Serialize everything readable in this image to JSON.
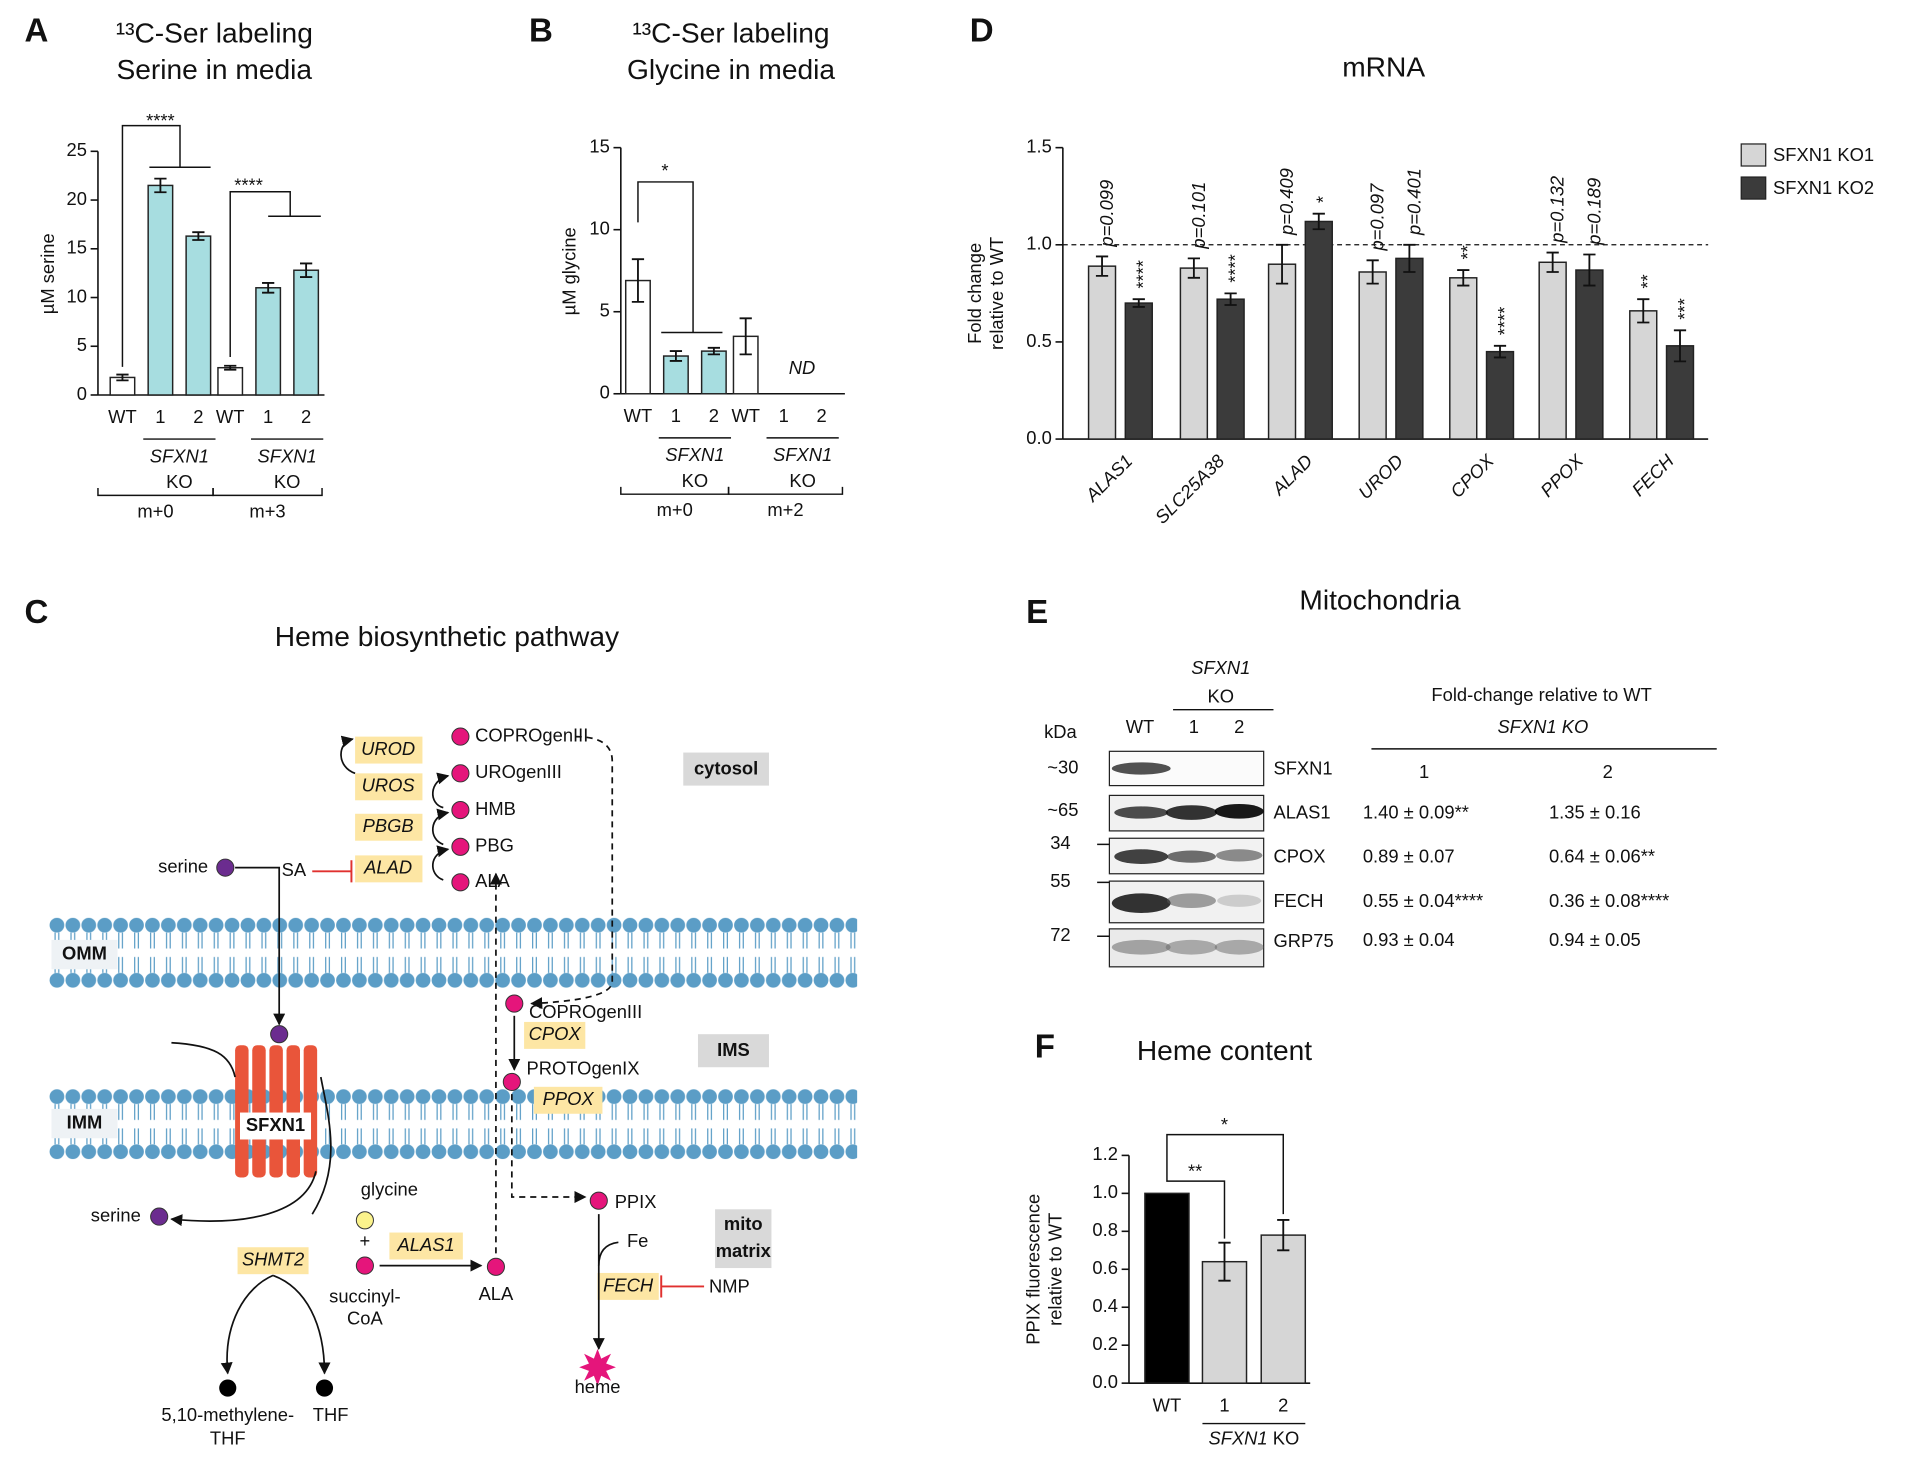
{
  "chart_data": [
    {
      "type": "bar",
      "panel": "A",
      "title": "¹³C-Ser labeling",
      "subtitle": "Serine in media",
      "y_label": "µM serine",
      "categories": [
        "WT",
        "1",
        "2",
        "WT",
        "1",
        "2"
      ],
      "values": [
        1.8,
        21.5,
        16.3,
        2.8,
        11.0,
        12.8
      ],
      "errors": [
        0.3,
        0.7,
        0.4,
        0.2,
        0.5,
        0.7
      ],
      "colors": [
        "#ffffff",
        "#a7dde0",
        "#a7dde0",
        "#ffffff",
        "#a7dde0",
        "#a7dde0"
      ],
      "ylim": [
        0,
        25
      ],
      "yticks": [
        0,
        5,
        10,
        15,
        20,
        25
      ],
      "group_label": [
        "SFXN1",
        "KO"
      ],
      "conditions": [
        "m+0",
        "m+3"
      ],
      "significance": [
        "****",
        "****"
      ]
    },
    {
      "type": "bar",
      "panel": "B",
      "title": "¹³C-Ser labeling",
      "subtitle": "Glycine in media",
      "y_label": "µM glycine",
      "categories": [
        "WT",
        "1",
        "2",
        "WT",
        "1",
        "2"
      ],
      "values": [
        6.9,
        2.3,
        2.6,
        3.5,
        null,
        null
      ],
      "errors": [
        1.3,
        0.3,
        0.2,
        1.1,
        null,
        null
      ],
      "colors": [
        "#ffffff",
        "#a7dde0",
        "#a7dde0",
        "#ffffff",
        "#a7dde0",
        "#a7dde0"
      ],
      "ylim": [
        0,
        15
      ],
      "yticks": [
        0,
        5,
        10,
        15
      ],
      "annotation": "ND",
      "group_label": [
        "SFXN1",
        "KO"
      ],
      "conditions": [
        "m+0",
        "m+2"
      ],
      "significance": [
        "*"
      ]
    },
    {
      "type": "bar",
      "panel": "D",
      "title": "mRNA",
      "y_label": [
        "Fold change",
        "relative to WT"
      ],
      "categories": [
        "ALAS1",
        "SLC25A38",
        "ALAD",
        "UROD",
        "CPOX",
        "PPOX",
        "FECH"
      ],
      "series": [
        {
          "name": "SFXN1 KO1",
          "color": "#d6d6d6",
          "values": [
            0.89,
            0.88,
            0.9,
            0.86,
            0.83,
            0.91,
            0.66
          ],
          "errors": [
            0.05,
            0.05,
            0.1,
            0.06,
            0.04,
            0.05,
            0.06
          ],
          "annotations": [
            "p=0.099",
            "p=0.101",
            "p=0.409",
            "p=0.097",
            "**",
            "p=0.132",
            "**"
          ]
        },
        {
          "name": "SFXN1 KO2",
          "color": "#3b3b3b",
          "values": [
            0.7,
            0.72,
            1.12,
            0.93,
            0.45,
            0.87,
            0.48
          ],
          "errors": [
            0.02,
            0.03,
            0.04,
            0.07,
            0.03,
            0.08,
            0.08
          ],
          "annotations": [
            "****",
            "****",
            "*",
            "p=0.401",
            "****",
            "p=0.189",
            "***"
          ]
        }
      ],
      "ylim": [
        0,
        1.5
      ],
      "yticks": [
        {
          "value": 0,
          "label": "0.0"
        },
        0.5,
        {
          "value": 1,
          "label": "1.0"
        },
        1.5
      ],
      "reference_line": 1
    },
    {
      "type": "bar",
      "panel": "F",
      "title": "Heme content",
      "y_label": [
        "PPIX fluorescence",
        "relative to WT"
      ],
      "categories": [
        "WT",
        "1",
        "2"
      ],
      "values": [
        1.0,
        0.64,
        0.78
      ],
      "errors": [
        null,
        0.1,
        0.08
      ],
      "colors": [
        "#000000",
        "#d6d6d6",
        "#d6d6d6"
      ],
      "ylim": [
        0,
        1.2
      ],
      "yticks": [
        {
          "value": 0,
          "label": "0.0"
        },
        0.2,
        0.4,
        0.6,
        0.8,
        {
          "value": 1,
          "label": "1.0"
        },
        1.2
      ],
      "group_label": [
        "SFXN1",
        "KO"
      ],
      "significance": [
        "**",
        "*"
      ]
    }
  ],
  "pathway": {
    "panel": "C",
    "title": "Heme biosynthetic pathway",
    "compartments": [
      "cytosol",
      "IMS"
    ],
    "matrix_label": [
      "mito",
      "matrix"
    ],
    "membranes": [
      "OMM",
      "IMM"
    ],
    "transporter": "SFXN1",
    "enzymes": [
      "UROD",
      "UROS",
      "PBGB",
      "ALAD",
      "SHMT2",
      "ALAS1",
      "CPOX",
      "PPOX",
      "FECH"
    ],
    "metabolites": [
      "COPROgenIII",
      "UROgenIII",
      "HMB",
      "PBG",
      "ALA",
      "serine",
      "COPROgenIII",
      "PROTOgenIX",
      "PPIX",
      "Fe",
      "heme",
      "serine",
      "glycine",
      "+",
      "succinyl-",
      "CoA",
      "ALA",
      "5,10-methylene-",
      "THF",
      "THF"
    ],
    "inhibitors": [
      "SA",
      "NMP"
    ]
  },
  "blot": {
    "panel": "E",
    "title": "Mitochondria",
    "ko_label": [
      "SFXN1",
      "KO"
    ],
    "lanes": [
      "WT",
      "1",
      "2"
    ],
    "kda_label": "kDa",
    "markers": [
      "~30",
      "~65",
      "34",
      "55",
      "72"
    ],
    "proteins": [
      "SFXN1",
      "ALAS1",
      "CPOX",
      "FECH",
      "GRP75"
    ],
    "table": {
      "title": "Fold-change relative to WT",
      "subtitle": "SFXN1 KO",
      "columns": [
        "1",
        "2"
      ],
      "rows": [
        [
          "1.40 ± 0.09**",
          "1.35 ± 0.16"
        ],
        [
          "0.89 ± 0.07",
          "0.64 ± 0.06**"
        ],
        [
          "0.55 ± 0.04****",
          "0.36 ± 0.08****"
        ],
        [
          "0.93 ± 0.04",
          "0.94 ± 0.05"
        ]
      ]
    }
  }
}
